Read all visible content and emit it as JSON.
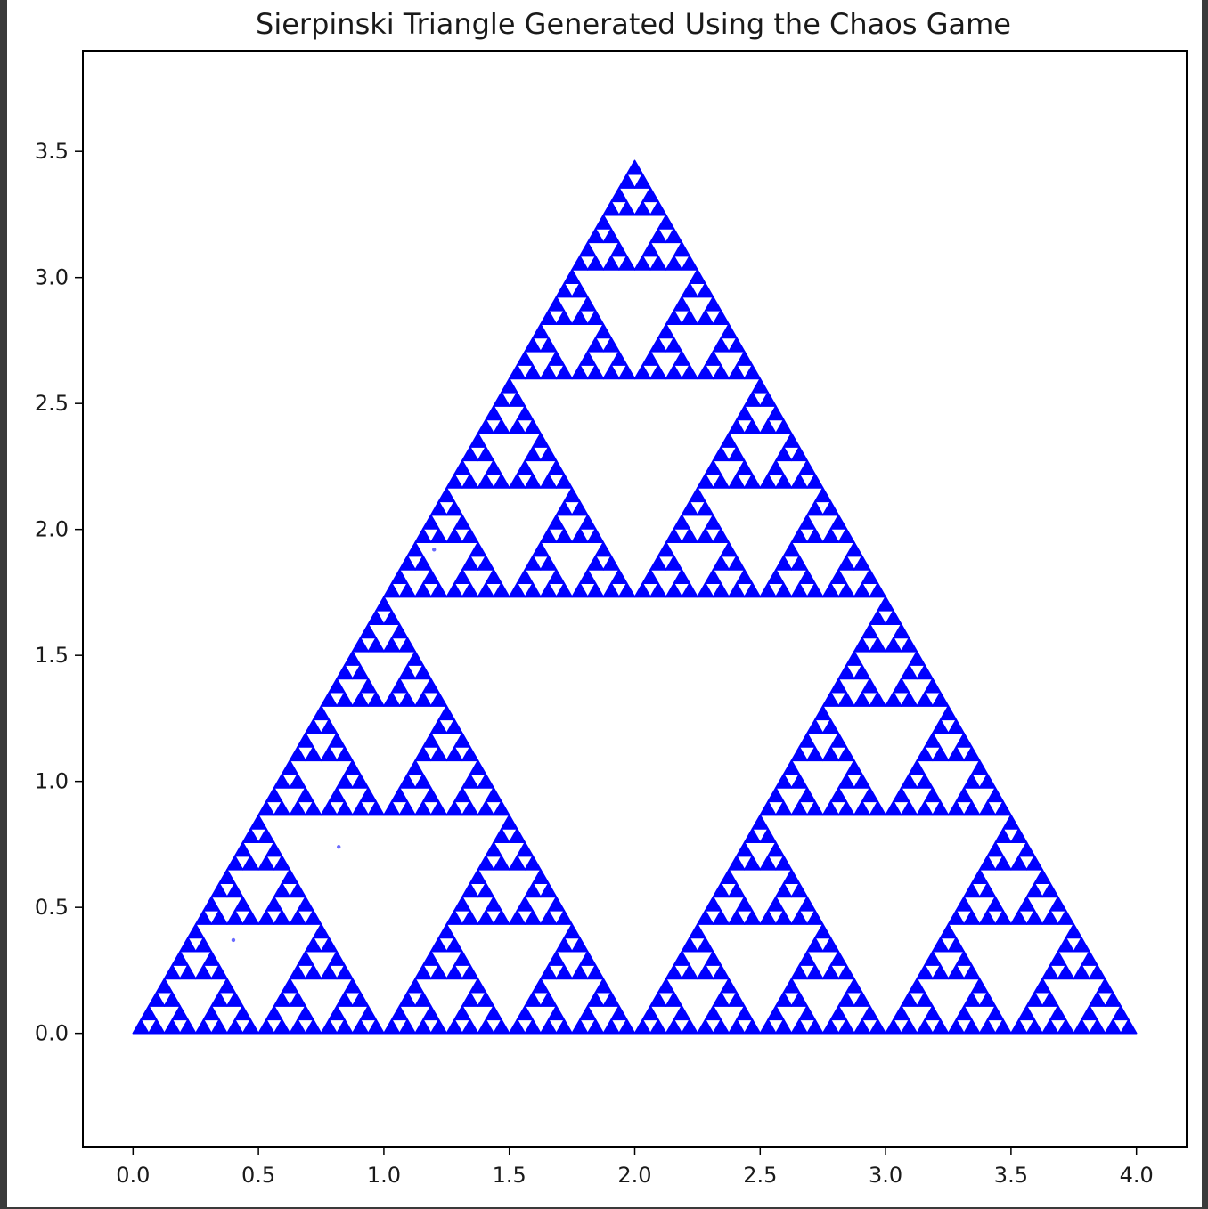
{
  "chart_data": {
    "type": "scatter",
    "title": "Sierpinski Triangle Generated Using the Chaos Game",
    "xlabel": "",
    "ylabel": "",
    "xlim": [
      -0.2,
      4.2
    ],
    "ylim": [
      -0.45,
      3.9
    ],
    "xticks": [
      "0.0",
      "0.5",
      "1.0",
      "1.5",
      "2.0",
      "2.5",
      "3.0",
      "3.5",
      "4.0"
    ],
    "yticks": [
      "0.0",
      "0.5",
      "1.0",
      "1.5",
      "2.0",
      "2.5",
      "3.0",
      "3.5"
    ],
    "vertices": [
      [
        0,
        0
      ],
      [
        4,
        0
      ],
      [
        2,
        3.464
      ]
    ],
    "recursion_depth": 6,
    "stray_points": [
      [
        0.4,
        0.37
      ],
      [
        0.82,
        0.74
      ],
      [
        1.2,
        1.92
      ]
    ],
    "grid": false,
    "legend": "none",
    "marker_color": "#0000ff"
  }
}
